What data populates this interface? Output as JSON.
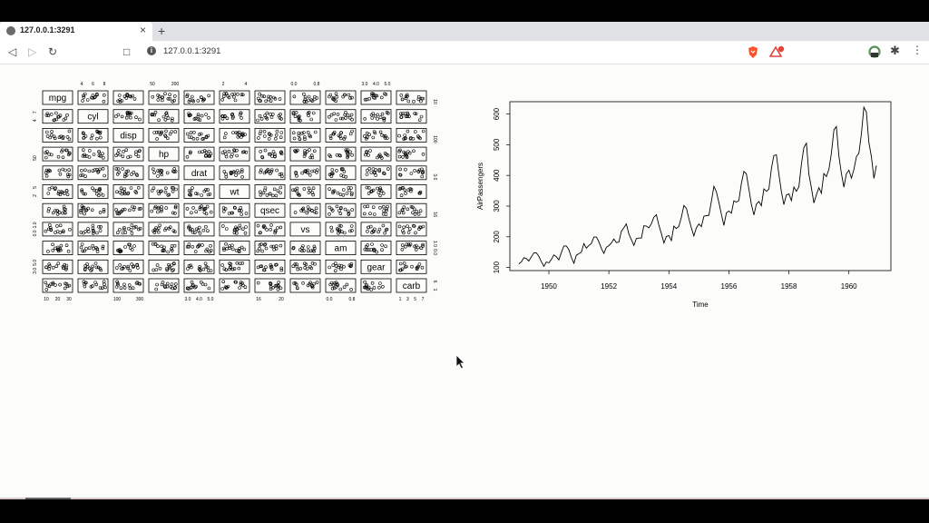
{
  "browser": {
    "tab_title": "127.0.0.1:3291",
    "tab_close": "×",
    "new_tab": "+",
    "url": "127.0.0.1:3291",
    "icons": [
      "back-icon",
      "forward-icon",
      "reload-icon",
      "bookmark-icon",
      "info-icon",
      "brave-shield-icon",
      "rewards-icon",
      "extension-icon",
      "puzzle-icon",
      "menu-icon"
    ]
  },
  "pairs_plot": {
    "variables": [
      "mpg",
      "cyl",
      "disp",
      "hp",
      "drat",
      "wt",
      "qsec",
      "vs",
      "am",
      "gear",
      "carb"
    ],
    "top_axis_labels": [
      {
        "col": 1,
        "labels": [
          "4",
          "6",
          "8"
        ]
      },
      {
        "col": 3,
        "labels": [
          "50",
          "200"
        ]
      },
      {
        "col": 5,
        "labels": [
          "2",
          "4"
        ]
      },
      {
        "col": 7,
        "labels": [
          "0.0",
          "0.8"
        ]
      },
      {
        "col": 9,
        "labels": [
          "3.0",
          "4.0",
          "5.0"
        ]
      }
    ],
    "bottom_axis_labels": [
      {
        "col": 0,
        "labels": [
          "10",
          "20",
          "30"
        ]
      },
      {
        "col": 2,
        "labels": [
          "100",
          "300"
        ]
      },
      {
        "col": 4,
        "labels": [
          "3.0",
          "4.0",
          "5.0"
        ]
      },
      {
        "col": 6,
        "labels": [
          "16",
          "20"
        ]
      },
      {
        "col": 8,
        "labels": [
          "0.0",
          "0.8"
        ]
      },
      {
        "col": 10,
        "labels": [
          "1",
          "3",
          "5",
          "7"
        ]
      }
    ],
    "left_axis_labels": [
      {
        "row": 1,
        "labels": [
          "4",
          "7"
        ]
      },
      {
        "row": 3,
        "labels": [
          "50"
        ]
      },
      {
        "row": 5,
        "labels": [
          "2",
          "5"
        ]
      },
      {
        "row": 7,
        "labels": [
          "0.0",
          "1.0"
        ]
      },
      {
        "row": 9,
        "labels": [
          "3.0",
          "5.0"
        ]
      }
    ],
    "right_axis_labels": [
      {
        "row": 0,
        "labels": [
          "10"
        ]
      },
      {
        "row": 2,
        "labels": [
          "100"
        ]
      },
      {
        "row": 4,
        "labels": [
          "3.0"
        ]
      },
      {
        "row": 6,
        "labels": [
          "16"
        ]
      },
      {
        "row": 8,
        "labels": [
          "0.0",
          "1.0"
        ]
      },
      {
        "row": 10,
        "labels": [
          "1",
          "6"
        ]
      }
    ]
  },
  "chart_data": {
    "type": "line",
    "xlabel": "Time",
    "ylabel": "AirPassengers",
    "xlim": [
      1948.7,
      1961.4
    ],
    "ylim": [
      90,
      640
    ],
    "xticks": [
      "1950",
      "1952",
      "1954",
      "1956",
      "1958",
      "1960"
    ],
    "yticks": [
      "100",
      "200",
      "300",
      "400",
      "500",
      "600"
    ],
    "x_start": 1949,
    "x_step": 0.0833333,
    "values": [
      112,
      118,
      132,
      129,
      121,
      135,
      148,
      148,
      136,
      119,
      104,
      118,
      115,
      126,
      141,
      135,
      125,
      149,
      170,
      170,
      158,
      133,
      114,
      140,
      145,
      150,
      178,
      163,
      172,
      178,
      199,
      199,
      184,
      162,
      146,
      166,
      171,
      180,
      193,
      181,
      183,
      218,
      230,
      242,
      209,
      191,
      172,
      194,
      196,
      196,
      236,
      235,
      229,
      243,
      264,
      272,
      237,
      211,
      180,
      201,
      204,
      188,
      235,
      227,
      234,
      264,
      302,
      293,
      259,
      229,
      203,
      229,
      242,
      233,
      267,
      269,
      270,
      315,
      364,
      347,
      312,
      274,
      237,
      278,
      284,
      277,
      317,
      313,
      318,
      374,
      413,
      405,
      355,
      306,
      271,
      306,
      315,
      301,
      356,
      348,
      355,
      422,
      465,
      467,
      404,
      347,
      305,
      336,
      340,
      318,
      362,
      348,
      363,
      435,
      491,
      505,
      404,
      359,
      310,
      337,
      360,
      342,
      406,
      396,
      420,
      472,
      548,
      559,
      463,
      407,
      362,
      405,
      417,
      391,
      419,
      461,
      472,
      535,
      622,
      606,
      508,
      461,
      390,
      432
    ]
  }
}
